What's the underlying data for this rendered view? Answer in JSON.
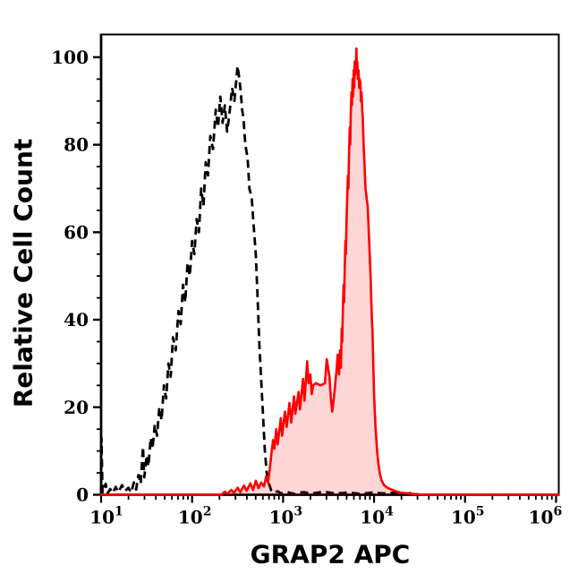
{
  "colors": {
    "background": "#ffffff",
    "frame": "#000000",
    "control_line": "#000000",
    "sample_line": "#ff0000",
    "sample_fill": "rgba(255,0,0,0.16)",
    "text": "#000000"
  },
  "chart_data": {
    "type": "area",
    "subtype": "flow-cytometry-histogram-overlay",
    "title": "",
    "xlabel": "GRAP2 APC",
    "ylabel": "Relative Cell Count",
    "x_scale": "log10",
    "x_range_log": [
      1.0,
      6.03
    ],
    "y_range": [
      0,
      105.2
    ],
    "grid": false,
    "legend": "none",
    "x_ticks": [
      {
        "log": 1,
        "base": "10",
        "exp": "1"
      },
      {
        "log": 2,
        "base": "10",
        "exp": "2"
      },
      {
        "log": 3,
        "base": "10",
        "exp": "3"
      },
      {
        "log": 4,
        "base": "10",
        "exp": "4"
      },
      {
        "log": 5,
        "base": "10",
        "exp": "5"
      },
      {
        "log": 6,
        "base": "10",
        "exp": "6"
      }
    ],
    "x_minor_subs": [
      2,
      3,
      4,
      5,
      6,
      7,
      8,
      9
    ],
    "y_ticks": [
      0,
      20,
      40,
      60,
      80,
      100
    ],
    "y_minor_step": 5,
    "series": [
      {
        "id": "control-dashed",
        "style": "dashed",
        "color": "#000000",
        "fill": null,
        "points_logx_y": [
          [
            1.0,
            0
          ],
          [
            1.004,
            13
          ],
          [
            1.015,
            0.5
          ],
          [
            1.05,
            2.5
          ],
          [
            1.07,
            0.3
          ],
          [
            1.1,
            1.3
          ],
          [
            1.13,
            0.4
          ],
          [
            1.16,
            1.8
          ],
          [
            1.19,
            0.6
          ],
          [
            1.23,
            2.2
          ],
          [
            1.26,
            0.8
          ],
          [
            1.3,
            1.6
          ],
          [
            1.33,
            0.5
          ],
          [
            1.36,
            2.8
          ],
          [
            1.385,
            1.2
          ],
          [
            1.41,
            4.5
          ],
          [
            1.435,
            2.5
          ],
          [
            1.46,
            11
          ],
          [
            1.475,
            4
          ],
          [
            1.5,
            9
          ],
          [
            1.52,
            6.5
          ],
          [
            1.545,
            13
          ],
          [
            1.565,
            10.5
          ],
          [
            1.59,
            16
          ],
          [
            1.615,
            13.5
          ],
          [
            1.64,
            20
          ],
          [
            1.665,
            17
          ],
          [
            1.69,
            25
          ],
          [
            1.715,
            22
          ],
          [
            1.74,
            30
          ],
          [
            1.765,
            27
          ],
          [
            1.79,
            36
          ],
          [
            1.82,
            33
          ],
          [
            1.85,
            42
          ],
          [
            1.875,
            39
          ],
          [
            1.9,
            48
          ],
          [
            1.925,
            44
          ],
          [
            1.95,
            53
          ],
          [
            1.975,
            50
          ],
          [
            2.0,
            58
          ],
          [
            2.025,
            55
          ],
          [
            2.05,
            63
          ],
          [
            2.075,
            60
          ],
          [
            2.1,
            70
          ],
          [
            2.125,
            66
          ],
          [
            2.15,
            76
          ],
          [
            2.175,
            73
          ],
          [
            2.2,
            82
          ],
          [
            2.23,
            79
          ],
          [
            2.26,
            88
          ],
          [
            2.285,
            84
          ],
          [
            2.31,
            91
          ],
          [
            2.335,
            85
          ],
          [
            2.36,
            89
          ],
          [
            2.385,
            83
          ],
          [
            2.41,
            87
          ],
          [
            2.44,
            93
          ],
          [
            2.465,
            90
          ],
          [
            2.5,
            98
          ],
          [
            2.52,
            95
          ],
          [
            2.535,
            92
          ],
          [
            2.55,
            88
          ],
          [
            2.565,
            86
          ],
          [
            2.585,
            80
          ],
          [
            2.61,
            77
          ],
          [
            2.63,
            70
          ],
          [
            2.655,
            68
          ],
          [
            2.675,
            62
          ],
          [
            2.7,
            55
          ],
          [
            2.72,
            45
          ],
          [
            2.74,
            34
          ],
          [
            2.76,
            26
          ],
          [
            2.78,
            18
          ],
          [
            2.8,
            10
          ],
          [
            2.82,
            5
          ],
          [
            2.845,
            2.5
          ],
          [
            2.87,
            1
          ],
          [
            2.9,
            0.4
          ],
          [
            2.94,
            0.8
          ],
          [
            2.98,
            0.3
          ],
          [
            3.05,
            0.6
          ],
          [
            3.12,
            0.2
          ],
          [
            3.22,
            0.6
          ],
          [
            3.32,
            0.3
          ],
          [
            3.45,
            0.7
          ],
          [
            3.58,
            0.3
          ],
          [
            3.72,
            0.5
          ],
          [
            3.85,
            0.2
          ],
          [
            3.98,
            0.5
          ],
          [
            4.1,
            0.3
          ],
          [
            4.22,
            0.5
          ],
          [
            4.32,
            0.2
          ],
          [
            4.42,
            0.4
          ],
          [
            4.5,
            0
          ]
        ]
      },
      {
        "id": "grap2-apc-sample",
        "style": "solid",
        "color": "#ff0000",
        "fill": "rgba(255,0,0,0.16)",
        "points_logx_y": [
          [
            1.0,
            0
          ],
          [
            2.32,
            0
          ],
          [
            2.36,
            0.7
          ],
          [
            2.39,
            0.2
          ],
          [
            2.43,
            1.1
          ],
          [
            2.46,
            0.4
          ],
          [
            2.5,
            1.6
          ],
          [
            2.53,
            0.6
          ],
          [
            2.57,
            2.1
          ],
          [
            2.6,
            0.9
          ],
          [
            2.64,
            2.6
          ],
          [
            2.67,
            1.1
          ],
          [
            2.7,
            3.2
          ],
          [
            2.73,
            1.5
          ],
          [
            2.76,
            2.8
          ],
          [
            2.79,
            1.9
          ],
          [
            2.815,
            4.2
          ],
          [
            2.835,
            2.8
          ],
          [
            2.855,
            6
          ],
          [
            2.875,
            10
          ],
          [
            2.89,
            12.5
          ],
          [
            2.905,
            10.5
          ],
          [
            2.925,
            15
          ],
          [
            2.94,
            11.5
          ],
          [
            2.955,
            14
          ],
          [
            2.975,
            17.5
          ],
          [
            2.99,
            13.5
          ],
          [
            3.02,
            19
          ],
          [
            3.04,
            15.5
          ],
          [
            3.07,
            21
          ],
          [
            3.09,
            16.5
          ],
          [
            3.12,
            22.5
          ],
          [
            3.135,
            18.5
          ],
          [
            3.17,
            23.5
          ],
          [
            3.185,
            19.5
          ],
          [
            3.22,
            26.5
          ],
          [
            3.235,
            21.5
          ],
          [
            3.265,
            30.5
          ],
          [
            3.28,
            25.5
          ],
          [
            3.3,
            27.5
          ],
          [
            3.315,
            23
          ],
          [
            3.33,
            25
          ],
          [
            3.36,
            25.5
          ],
          [
            3.41,
            25
          ],
          [
            3.46,
            25.5
          ],
          [
            3.48,
            31
          ],
          [
            3.51,
            27
          ],
          [
            3.525,
            22
          ],
          [
            3.54,
            19
          ],
          [
            3.56,
            22.5
          ],
          [
            3.59,
            29
          ],
          [
            3.6,
            32
          ],
          [
            3.615,
            27.5
          ],
          [
            3.625,
            33
          ],
          [
            3.635,
            29
          ],
          [
            3.645,
            38
          ],
          [
            3.65,
            35
          ],
          [
            3.658,
            43
          ],
          [
            3.665,
            48
          ],
          [
            3.67,
            44
          ],
          [
            3.678,
            52
          ],
          [
            3.685,
            58
          ],
          [
            3.69,
            55
          ],
          [
            3.698,
            63
          ],
          [
            3.705,
            68
          ],
          [
            3.713,
            73
          ],
          [
            3.718,
            70
          ],
          [
            3.725,
            78
          ],
          [
            3.733,
            84
          ],
          [
            3.738,
            80
          ],
          [
            3.745,
            88
          ],
          [
            3.752,
            92
          ],
          [
            3.757,
            89
          ],
          [
            3.764,
            95
          ],
          [
            3.77,
            91
          ],
          [
            3.776,
            97
          ],
          [
            3.781,
            93
          ],
          [
            3.787,
            99
          ],
          [
            3.792,
            96
          ],
          [
            3.8,
            98
          ],
          [
            3.806,
            102
          ],
          [
            3.811,
            97
          ],
          [
            3.816,
            99
          ],
          [
            3.822,
            95
          ],
          [
            3.83,
            97
          ],
          [
            3.836,
            93
          ],
          [
            3.842,
            95
          ],
          [
            3.85,
            94
          ],
          [
            3.856,
            90
          ],
          [
            3.862,
            92
          ],
          [
            3.87,
            88
          ],
          [
            3.876,
            86
          ],
          [
            3.882,
            82
          ],
          [
            3.887,
            79
          ],
          [
            3.892,
            77
          ],
          [
            3.9,
            73
          ],
          [
            3.906,
            70
          ],
          [
            3.912,
            69
          ],
          [
            3.92,
            67.5
          ],
          [
            3.93,
            66
          ],
          [
            3.936,
            63
          ],
          [
            3.942,
            60
          ],
          [
            3.95,
            56
          ],
          [
            3.956,
            53
          ],
          [
            3.962,
            50
          ],
          [
            3.967,
            46
          ],
          [
            3.972,
            43
          ],
          [
            3.977,
            39.5
          ],
          [
            3.982,
            38
          ],
          [
            3.99,
            31
          ],
          [
            4.0,
            23
          ],
          [
            4.007,
            19.5
          ],
          [
            4.016,
            15.5
          ],
          [
            4.026,
            12.3
          ],
          [
            4.036,
            9.4
          ],
          [
            4.05,
            6.7
          ],
          [
            4.065,
            4.7
          ],
          [
            4.082,
            3.3
          ],
          [
            4.11,
            2.2
          ],
          [
            4.145,
            1.6
          ],
          [
            4.19,
            1.2
          ],
          [
            4.24,
            0.8
          ],
          [
            4.29,
            0.5
          ],
          [
            4.38,
            0.3
          ],
          [
            4.48,
            0.1
          ],
          [
            4.58,
            0
          ],
          [
            6.03,
            0
          ]
        ]
      }
    ]
  }
}
